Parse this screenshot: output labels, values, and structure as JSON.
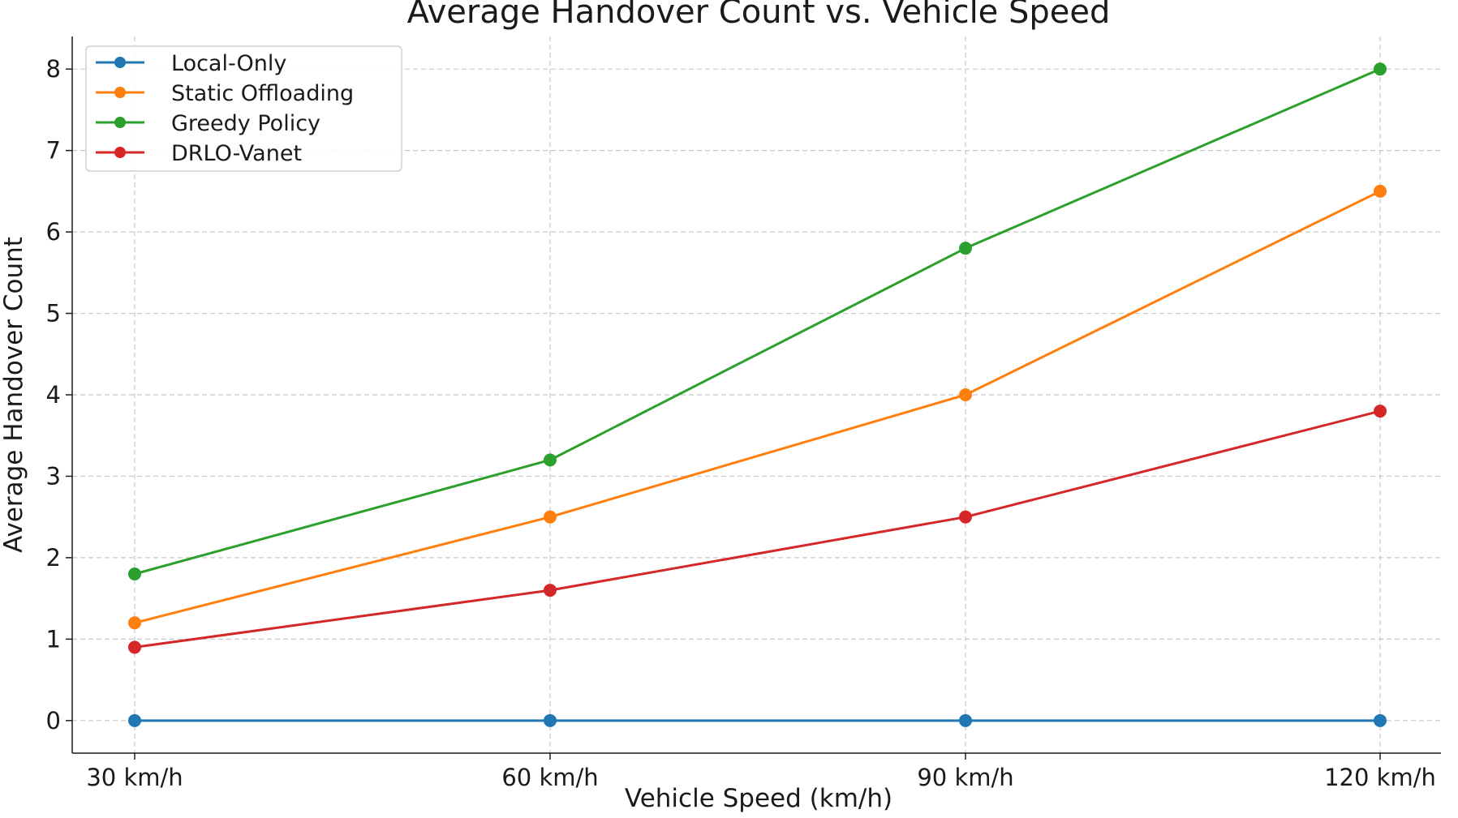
{
  "chart_data": {
    "type": "line",
    "title": "Average Handover Count vs. Vehicle Speed",
    "xlabel": "Vehicle Speed (km/h)",
    "ylabel": "Average Handover Count",
    "categories": [
      "30 km/h",
      "60 km/h",
      "90 km/h",
      "120 km/h"
    ],
    "ylim": [
      -0.4,
      8.4
    ],
    "yticks": [
      0,
      1,
      2,
      3,
      4,
      5,
      6,
      7,
      8
    ],
    "grid": true,
    "legend_position": "top-left",
    "series": [
      {
        "name": "Local-Only",
        "color": "#1f77b4",
        "values": [
          0,
          0,
          0,
          0
        ]
      },
      {
        "name": "Static Offloading",
        "color": "#ff7f0e",
        "values": [
          1.2,
          2.5,
          4.0,
          6.5
        ]
      },
      {
        "name": "Greedy Policy",
        "color": "#2ca02c",
        "values": [
          1.8,
          3.2,
          5.8,
          8.0
        ]
      },
      {
        "name": "DRLO-Vanet",
        "color": "#d62728",
        "values": [
          0.9,
          1.6,
          2.5,
          3.8
        ]
      }
    ]
  }
}
